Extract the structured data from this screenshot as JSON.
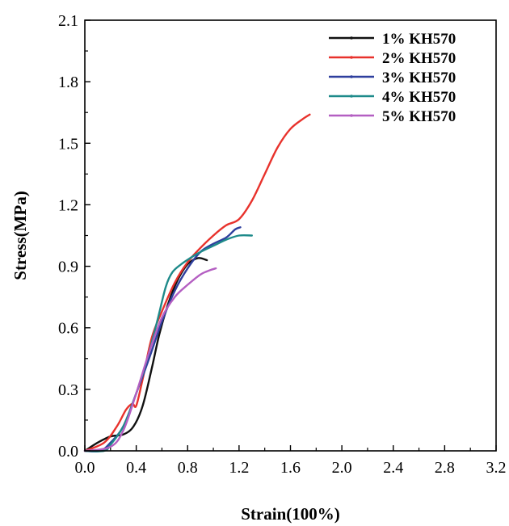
{
  "chart_data": {
    "type": "line",
    "title": "",
    "xlabel": "Strain(100%)",
    "ylabel": "Stress(MPa)",
    "xlim": [
      0.0,
      3.2
    ],
    "ylim": [
      0.0,
      2.1
    ],
    "xticks": [
      "0.0",
      "0.4",
      "0.8",
      "1.2",
      "1.6",
      "2.0",
      "2.4",
      "2.8",
      "3.2"
    ],
    "yticks": [
      "0.0",
      "0.3",
      "0.6",
      "0.9",
      "1.2",
      "1.5",
      "1.8",
      "2.1"
    ],
    "grid": false,
    "legend_position": "top-right",
    "series": [
      {
        "name": "1% KH570",
        "color": "#111111",
        "x": [
          0.0,
          0.1,
          0.2,
          0.3,
          0.38,
          0.45,
          0.52,
          0.58,
          0.65,
          0.72,
          0.8,
          0.88,
          0.95
        ],
        "y": [
          0.0,
          0.04,
          0.07,
          0.08,
          0.12,
          0.22,
          0.4,
          0.57,
          0.72,
          0.83,
          0.91,
          0.94,
          0.93
        ]
      },
      {
        "name": "2% KH570",
        "color": "#e8322c",
        "x": [
          0.0,
          0.15,
          0.25,
          0.32,
          0.37,
          0.4,
          0.45,
          0.52,
          0.6,
          0.7,
          0.8,
          0.9,
          1.0,
          1.1,
          1.2,
          1.3,
          1.4,
          1.5,
          1.6,
          1.7,
          1.75
        ],
        "y": [
          0.0,
          0.04,
          0.12,
          0.2,
          0.23,
          0.22,
          0.35,
          0.55,
          0.68,
          0.82,
          0.92,
          0.99,
          1.05,
          1.1,
          1.13,
          1.22,
          1.35,
          1.48,
          1.57,
          1.62,
          1.64
        ]
      },
      {
        "name": "3% KH570",
        "color": "#2e3f9e",
        "x": [
          0.0,
          0.12,
          0.2,
          0.3,
          0.4,
          0.5,
          0.6,
          0.7,
          0.8,
          0.9,
          1.0,
          1.1,
          1.17,
          1.21
        ],
        "y": [
          0.0,
          0.0,
          0.04,
          0.12,
          0.28,
          0.45,
          0.63,
          0.78,
          0.89,
          0.97,
          1.01,
          1.04,
          1.08,
          1.09
        ]
      },
      {
        "name": "4% KH570",
        "color": "#1e8a8a",
        "x": [
          0.0,
          0.15,
          0.2,
          0.3,
          0.4,
          0.5,
          0.57,
          0.63,
          0.68,
          0.75,
          0.82,
          0.9,
          1.0,
          1.1,
          1.2,
          1.3
        ],
        "y": [
          0.0,
          0.0,
          0.03,
          0.12,
          0.28,
          0.48,
          0.65,
          0.8,
          0.87,
          0.91,
          0.94,
          0.97,
          1.0,
          1.03,
          1.05,
          1.05
        ]
      },
      {
        "name": "5% KH570",
        "color": "#b45fc2",
        "x": [
          0.0,
          0.2,
          0.3,
          0.4,
          0.5,
          0.6,
          0.7,
          0.8,
          0.9,
          0.97,
          1.02
        ],
        "y": [
          0.0,
          0.02,
          0.1,
          0.28,
          0.48,
          0.65,
          0.75,
          0.81,
          0.86,
          0.88,
          0.89
        ]
      }
    ]
  }
}
